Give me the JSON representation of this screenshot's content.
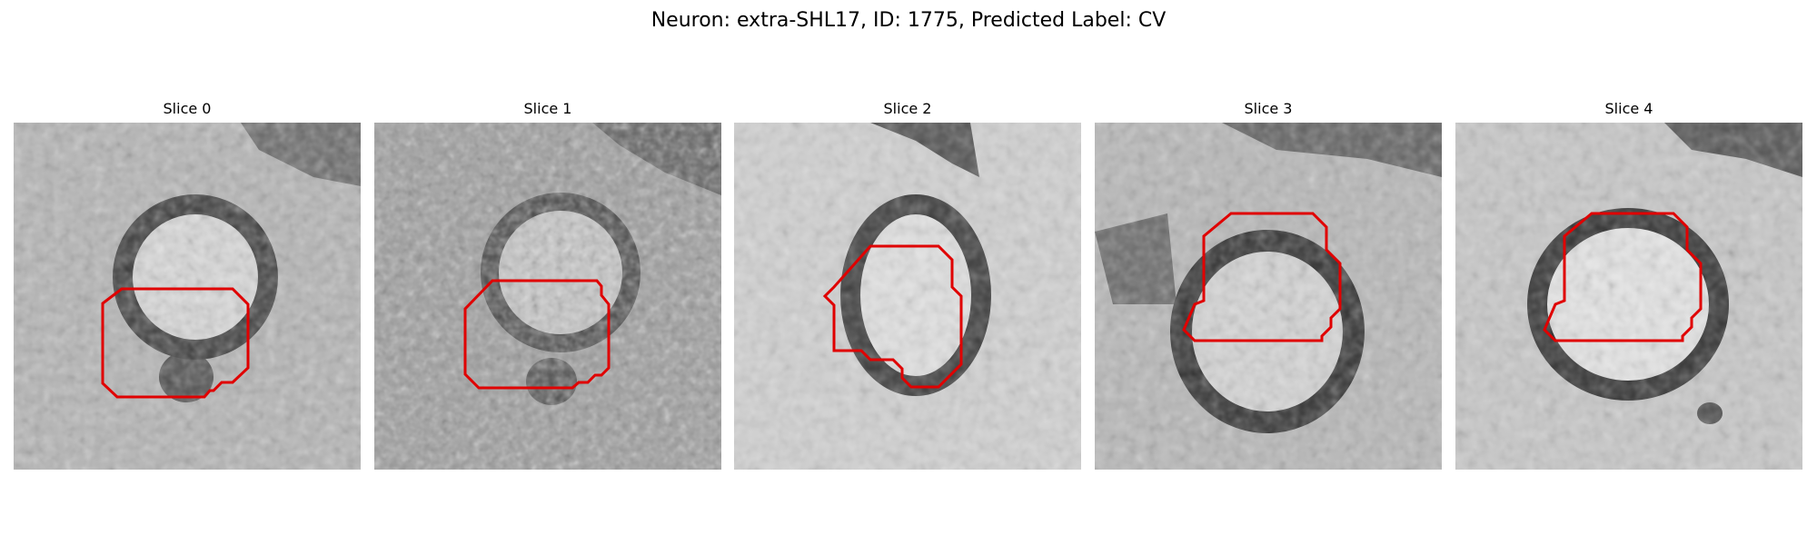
{
  "figure": {
    "title": "Neuron: extra-SHL17, ID: 1775, Predicted Label: CV"
  },
  "colors": {
    "background": "#ffffff",
    "contour": "#e00000",
    "membrane_dark": "#1e1e1e",
    "cytoplasm_light": "#e6e6e6"
  },
  "panels": [
    {
      "title": "Slice 0"
    },
    {
      "title": "Slice 1"
    },
    {
      "title": "Slice 2"
    },
    {
      "title": "Slice 3"
    },
    {
      "title": "Slice 4"
    }
  ]
}
